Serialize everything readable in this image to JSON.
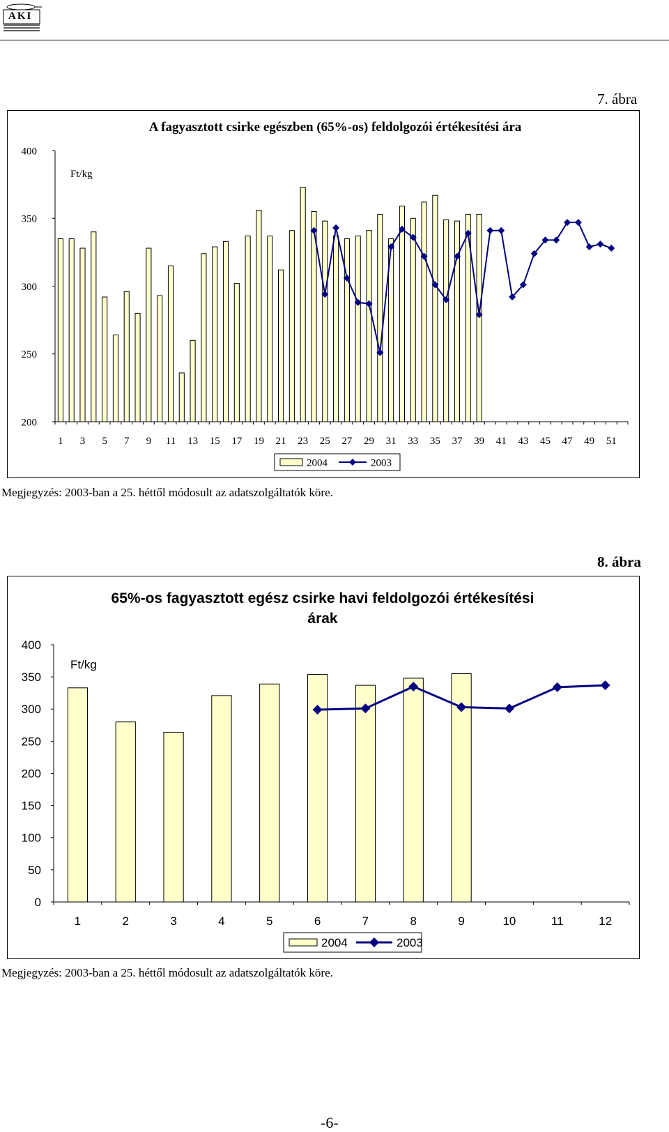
{
  "header": {
    "logo_text": "AKI"
  },
  "page_number": "-6-",
  "figure1": {
    "label": "7. ábra",
    "note": "Megjegyzés: 2003-ban a 25. héttől módosult az adatszolgáltatók köre.",
    "chart_data": {
      "type": "bar",
      "title": "A fagyasztott csirke egészben (65%-os) feldolgozói értékesítési ára",
      "ylabel": "Ft/kg",
      "ylim": [
        200,
        400
      ],
      "yticks": [
        200,
        250,
        300,
        350,
        400
      ],
      "x": [
        1,
        2,
        3,
        4,
        5,
        6,
        7,
        8,
        9,
        10,
        11,
        12,
        13,
        14,
        15,
        16,
        17,
        18,
        19,
        20,
        21,
        22,
        23,
        24,
        25,
        26,
        27,
        28,
        29,
        30,
        31,
        32,
        33,
        34,
        35,
        36,
        37,
        38,
        39,
        40,
        41,
        42,
        43,
        44,
        45,
        46,
        47,
        48,
        49,
        50,
        51,
        52
      ],
      "x_tick_labels": [
        "1",
        "3",
        "5",
        "7",
        "9",
        "11",
        "13",
        "15",
        "17",
        "19",
        "21",
        "23",
        "25",
        "27",
        "29",
        "31",
        "33",
        "35",
        "37",
        "39",
        "41",
        "43",
        "45",
        "47",
        "49",
        "51"
      ],
      "legend": "bottom-center",
      "grid": false,
      "series": [
        {
          "name": "2004",
          "type": "bar",
          "color": "#ffffcc",
          "values": [
            335,
            335,
            328,
            340,
            292,
            264,
            296,
            280,
            328,
            293,
            315,
            236,
            260,
            324,
            329,
            333,
            302,
            337,
            356,
            337,
            312,
            341,
            373,
            355,
            348,
            337,
            335,
            337,
            341,
            353,
            335,
            359,
            350,
            362,
            367,
            349,
            348,
            353,
            353,
            null,
            null,
            null,
            null,
            null,
            null,
            null,
            null,
            null,
            null,
            null,
            null,
            null
          ]
        },
        {
          "name": "2003",
          "type": "line",
          "color": "#000080",
          "values": [
            null,
            null,
            null,
            null,
            null,
            null,
            null,
            null,
            null,
            null,
            null,
            null,
            null,
            null,
            null,
            null,
            null,
            null,
            null,
            null,
            null,
            null,
            null,
            341,
            294,
            343,
            306,
            288,
            287,
            251,
            329,
            342,
            336,
            322,
            301,
            290,
            322,
            339,
            279,
            341,
            341,
            292,
            301,
            324,
            334,
            334,
            347,
            347,
            329,
            331,
            328,
            null
          ]
        }
      ]
    }
  },
  "figure2": {
    "label": "8. ábra",
    "note": "Megjegyzés: 2003-ban a 25. héttől módosult az adatszolgáltatók köre.",
    "chart_data": {
      "type": "bar",
      "title": "65%-os fagyasztott egész csirke havi feldolgozói értékesítési árak",
      "ylabel": "Ft/kg",
      "ylim": [
        0,
        400
      ],
      "yticks": [
        0,
        50,
        100,
        150,
        200,
        250,
        300,
        350,
        400
      ],
      "categories": [
        "1",
        "2",
        "3",
        "4",
        "5",
        "6",
        "7",
        "8",
        "9",
        "10",
        "11",
        "12"
      ],
      "legend": "bottom-center",
      "grid": false,
      "series": [
        {
          "name": "2004",
          "type": "bar",
          "color": "#ffffcc",
          "values": [
            333,
            280,
            264,
            321,
            339,
            354,
            337,
            348,
            355,
            null,
            null,
            null
          ]
        },
        {
          "name": "2003",
          "type": "line",
          "color": "#000080",
          "values": [
            null,
            null,
            null,
            null,
            null,
            299,
            301,
            335,
            303,
            301,
            334,
            337
          ]
        }
      ]
    }
  }
}
